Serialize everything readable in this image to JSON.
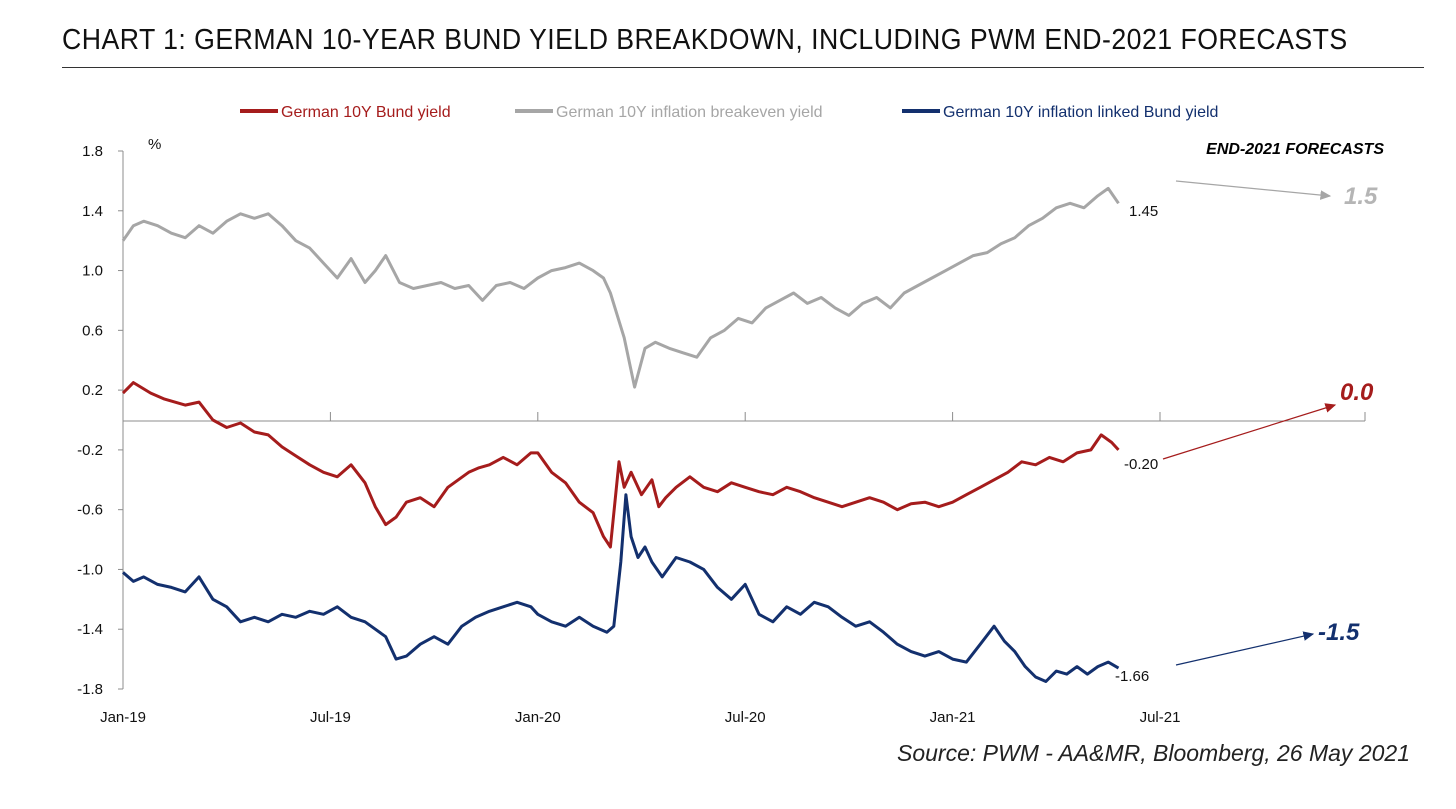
{
  "title": "CHART 1: GERMAN 10-YEAR BUND YIELD BREAKDOWN, INCLUDING PWM END-2021 FORECASTS",
  "source": "Source: PWM - AA&MR, Bloomberg, 26 May 2021",
  "colors": {
    "nominal": "#a51c1c",
    "breakeven": "#a6a6a6",
    "real": "#13306e",
    "axis": "#8c8c8c"
  },
  "chart_data": {
    "type": "line",
    "ylabel": "%",
    "ylim": [
      -1.8,
      1.8
    ],
    "yticks": [
      1.8,
      1.4,
      1.0,
      0.6,
      0.2,
      -0.2,
      -0.6,
      -1.0,
      -1.4,
      -1.8
    ],
    "ytick_labels": [
      "1.8",
      "1.4",
      "1.0",
      "0.6",
      "0.2",
      "-0.2",
      "-0.6",
      "-1.0",
      "-1.4",
      "-1.8"
    ],
    "xtick_labels": [
      "Jan-19",
      "Jul-19",
      "Jan-20",
      "Jul-20",
      "Jan-21",
      "Jul-21"
    ],
    "xtick_positions": [
      0,
      6,
      12,
      18,
      24,
      30
    ],
    "x_units": "months since Jan-19",
    "series": [
      {
        "name": "German 10Y Bund yield",
        "color": "#a51c1c",
        "x": [
          0,
          0.3,
          0.8,
          1.2,
          1.8,
          2.2,
          2.6,
          3.0,
          3.4,
          3.8,
          4.2,
          4.6,
          5.0,
          5.4,
          5.8,
          6.2,
          6.6,
          7.0,
          7.3,
          7.6,
          7.9,
          8.2,
          8.6,
          9.0,
          9.4,
          9.7,
          10.0,
          10.3,
          10.6,
          11.0,
          11.4,
          11.8,
          12.0,
          12.4,
          12.8,
          13.2,
          13.6,
          13.9,
          14.1,
          14.35,
          14.5,
          14.7,
          15.0,
          15.3,
          15.5,
          15.7,
          16.0,
          16.4,
          16.8,
          17.2,
          17.6,
          18.0,
          18.4,
          18.8,
          19.2,
          19.6,
          20.0,
          20.4,
          20.8,
          21.2,
          21.6,
          22.0,
          22.4,
          22.8,
          23.2,
          23.6,
          24.0,
          24.4,
          24.8,
          25.2,
          25.6,
          26.0,
          26.4,
          26.8,
          27.2,
          27.6,
          28.0,
          28.3,
          28.6,
          28.8
        ],
        "values": [
          0.18,
          0.25,
          0.18,
          0.14,
          0.1,
          0.12,
          0.0,
          -0.05,
          -0.02,
          -0.08,
          -0.1,
          -0.18,
          -0.24,
          -0.3,
          -0.35,
          -0.38,
          -0.3,
          -0.42,
          -0.58,
          -0.7,
          -0.65,
          -0.55,
          -0.52,
          -0.58,
          -0.45,
          -0.4,
          -0.35,
          -0.32,
          -0.3,
          -0.25,
          -0.3,
          -0.22,
          -0.22,
          -0.35,
          -0.42,
          -0.55,
          -0.62,
          -0.78,
          -0.85,
          -0.28,
          -0.45,
          -0.35,
          -0.5,
          -0.4,
          -0.58,
          -0.52,
          -0.45,
          -0.38,
          -0.45,
          -0.48,
          -0.42,
          -0.45,
          -0.48,
          -0.5,
          -0.45,
          -0.48,
          -0.52,
          -0.55,
          -0.58,
          -0.55,
          -0.52,
          -0.55,
          -0.6,
          -0.56,
          -0.55,
          -0.58,
          -0.55,
          -0.5,
          -0.45,
          -0.4,
          -0.35,
          -0.28,
          -0.3,
          -0.25,
          -0.28,
          -0.22,
          -0.2,
          -0.1,
          -0.15,
          -0.2
        ]
      },
      {
        "name": "German 10Y inflation breakeven yield",
        "color": "#a6a6a6",
        "x": [
          0,
          0.3,
          0.6,
          1.0,
          1.4,
          1.8,
          2.2,
          2.6,
          3.0,
          3.4,
          3.8,
          4.2,
          4.6,
          5.0,
          5.4,
          5.8,
          6.2,
          6.6,
          7.0,
          7.3,
          7.6,
          8.0,
          8.4,
          8.8,
          9.2,
          9.6,
          10.0,
          10.4,
          10.8,
          11.2,
          11.6,
          12.0,
          12.4,
          12.8,
          13.2,
          13.6,
          13.9,
          14.1,
          14.3,
          14.5,
          14.8,
          15.1,
          15.4,
          15.8,
          16.2,
          16.6,
          17.0,
          17.4,
          17.8,
          18.2,
          18.6,
          19.0,
          19.4,
          19.8,
          20.2,
          20.6,
          21.0,
          21.4,
          21.8,
          22.2,
          22.6,
          23.0,
          23.4,
          23.8,
          24.2,
          24.6,
          25.0,
          25.4,
          25.8,
          26.2,
          26.6,
          27.0,
          27.4,
          27.8,
          28.2,
          28.5,
          28.8
        ],
        "values": [
          1.2,
          1.3,
          1.33,
          1.3,
          1.25,
          1.22,
          1.3,
          1.25,
          1.33,
          1.38,
          1.35,
          1.38,
          1.3,
          1.2,
          1.15,
          1.05,
          0.95,
          1.08,
          0.92,
          1.0,
          1.1,
          0.92,
          0.88,
          0.9,
          0.92,
          0.88,
          0.9,
          0.8,
          0.9,
          0.92,
          0.88,
          0.95,
          1.0,
          1.02,
          1.05,
          1.0,
          0.95,
          0.85,
          0.7,
          0.55,
          0.22,
          0.48,
          0.52,
          0.48,
          0.45,
          0.42,
          0.55,
          0.6,
          0.68,
          0.65,
          0.75,
          0.8,
          0.85,
          0.78,
          0.82,
          0.75,
          0.7,
          0.78,
          0.82,
          0.75,
          0.85,
          0.9,
          0.95,
          1.0,
          1.05,
          1.1,
          1.12,
          1.18,
          1.22,
          1.3,
          1.35,
          1.42,
          1.45,
          1.42,
          1.5,
          1.55,
          1.45
        ]
      },
      {
        "name": "German 10Y inflation linked Bund yield",
        "color": "#13306e",
        "x": [
          0,
          0.3,
          0.6,
          1.0,
          1.4,
          1.8,
          2.2,
          2.6,
          3.0,
          3.4,
          3.8,
          4.2,
          4.6,
          5.0,
          5.4,
          5.8,
          6.2,
          6.6,
          7.0,
          7.3,
          7.6,
          7.9,
          8.2,
          8.6,
          9.0,
          9.4,
          9.8,
          10.2,
          10.6,
          11.0,
          11.4,
          11.8,
          12.0,
          12.4,
          12.8,
          13.2,
          13.6,
          14.0,
          14.2,
          14.4,
          14.55,
          14.7,
          14.9,
          15.1,
          15.3,
          15.6,
          16.0,
          16.4,
          16.8,
          17.2,
          17.6,
          18.0,
          18.4,
          18.8,
          19.2,
          19.6,
          20.0,
          20.4,
          20.8,
          21.2,
          21.6,
          22.0,
          22.4,
          22.8,
          23.2,
          23.6,
          24.0,
          24.4,
          24.8,
          25.2,
          25.5,
          25.8,
          26.1,
          26.4,
          26.7,
          27.0,
          27.3,
          27.6,
          27.9,
          28.2,
          28.5,
          28.8
        ],
        "values": [
          -1.02,
          -1.08,
          -1.05,
          -1.1,
          -1.12,
          -1.15,
          -1.05,
          -1.2,
          -1.25,
          -1.35,
          -1.32,
          -1.35,
          -1.3,
          -1.32,
          -1.28,
          -1.3,
          -1.25,
          -1.32,
          -1.35,
          -1.4,
          -1.45,
          -1.6,
          -1.58,
          -1.5,
          -1.45,
          -1.5,
          -1.38,
          -1.32,
          -1.28,
          -1.25,
          -1.22,
          -1.25,
          -1.3,
          -1.35,
          -1.38,
          -1.32,
          -1.38,
          -1.42,
          -1.38,
          -0.95,
          -0.5,
          -0.78,
          -0.92,
          -0.85,
          -0.95,
          -1.05,
          -0.92,
          -0.95,
          -1.0,
          -1.12,
          -1.2,
          -1.1,
          -1.3,
          -1.35,
          -1.25,
          -1.3,
          -1.22,
          -1.25,
          -1.32,
          -1.38,
          -1.35,
          -1.42,
          -1.5,
          -1.55,
          -1.58,
          -1.55,
          -1.6,
          -1.62,
          -1.5,
          -1.38,
          -1.48,
          -1.55,
          -1.65,
          -1.72,
          -1.75,
          -1.68,
          -1.7,
          -1.65,
          -1.7,
          -1.65,
          -1.62,
          -1.66
        ]
      }
    ],
    "end_labels": [
      "1.45",
      "-0.20",
      "-1.66"
    ],
    "forecast_header": "END-2021 FORECASTS",
    "forecasts": [
      "1.5",
      "0.0",
      "-1.5"
    ]
  }
}
